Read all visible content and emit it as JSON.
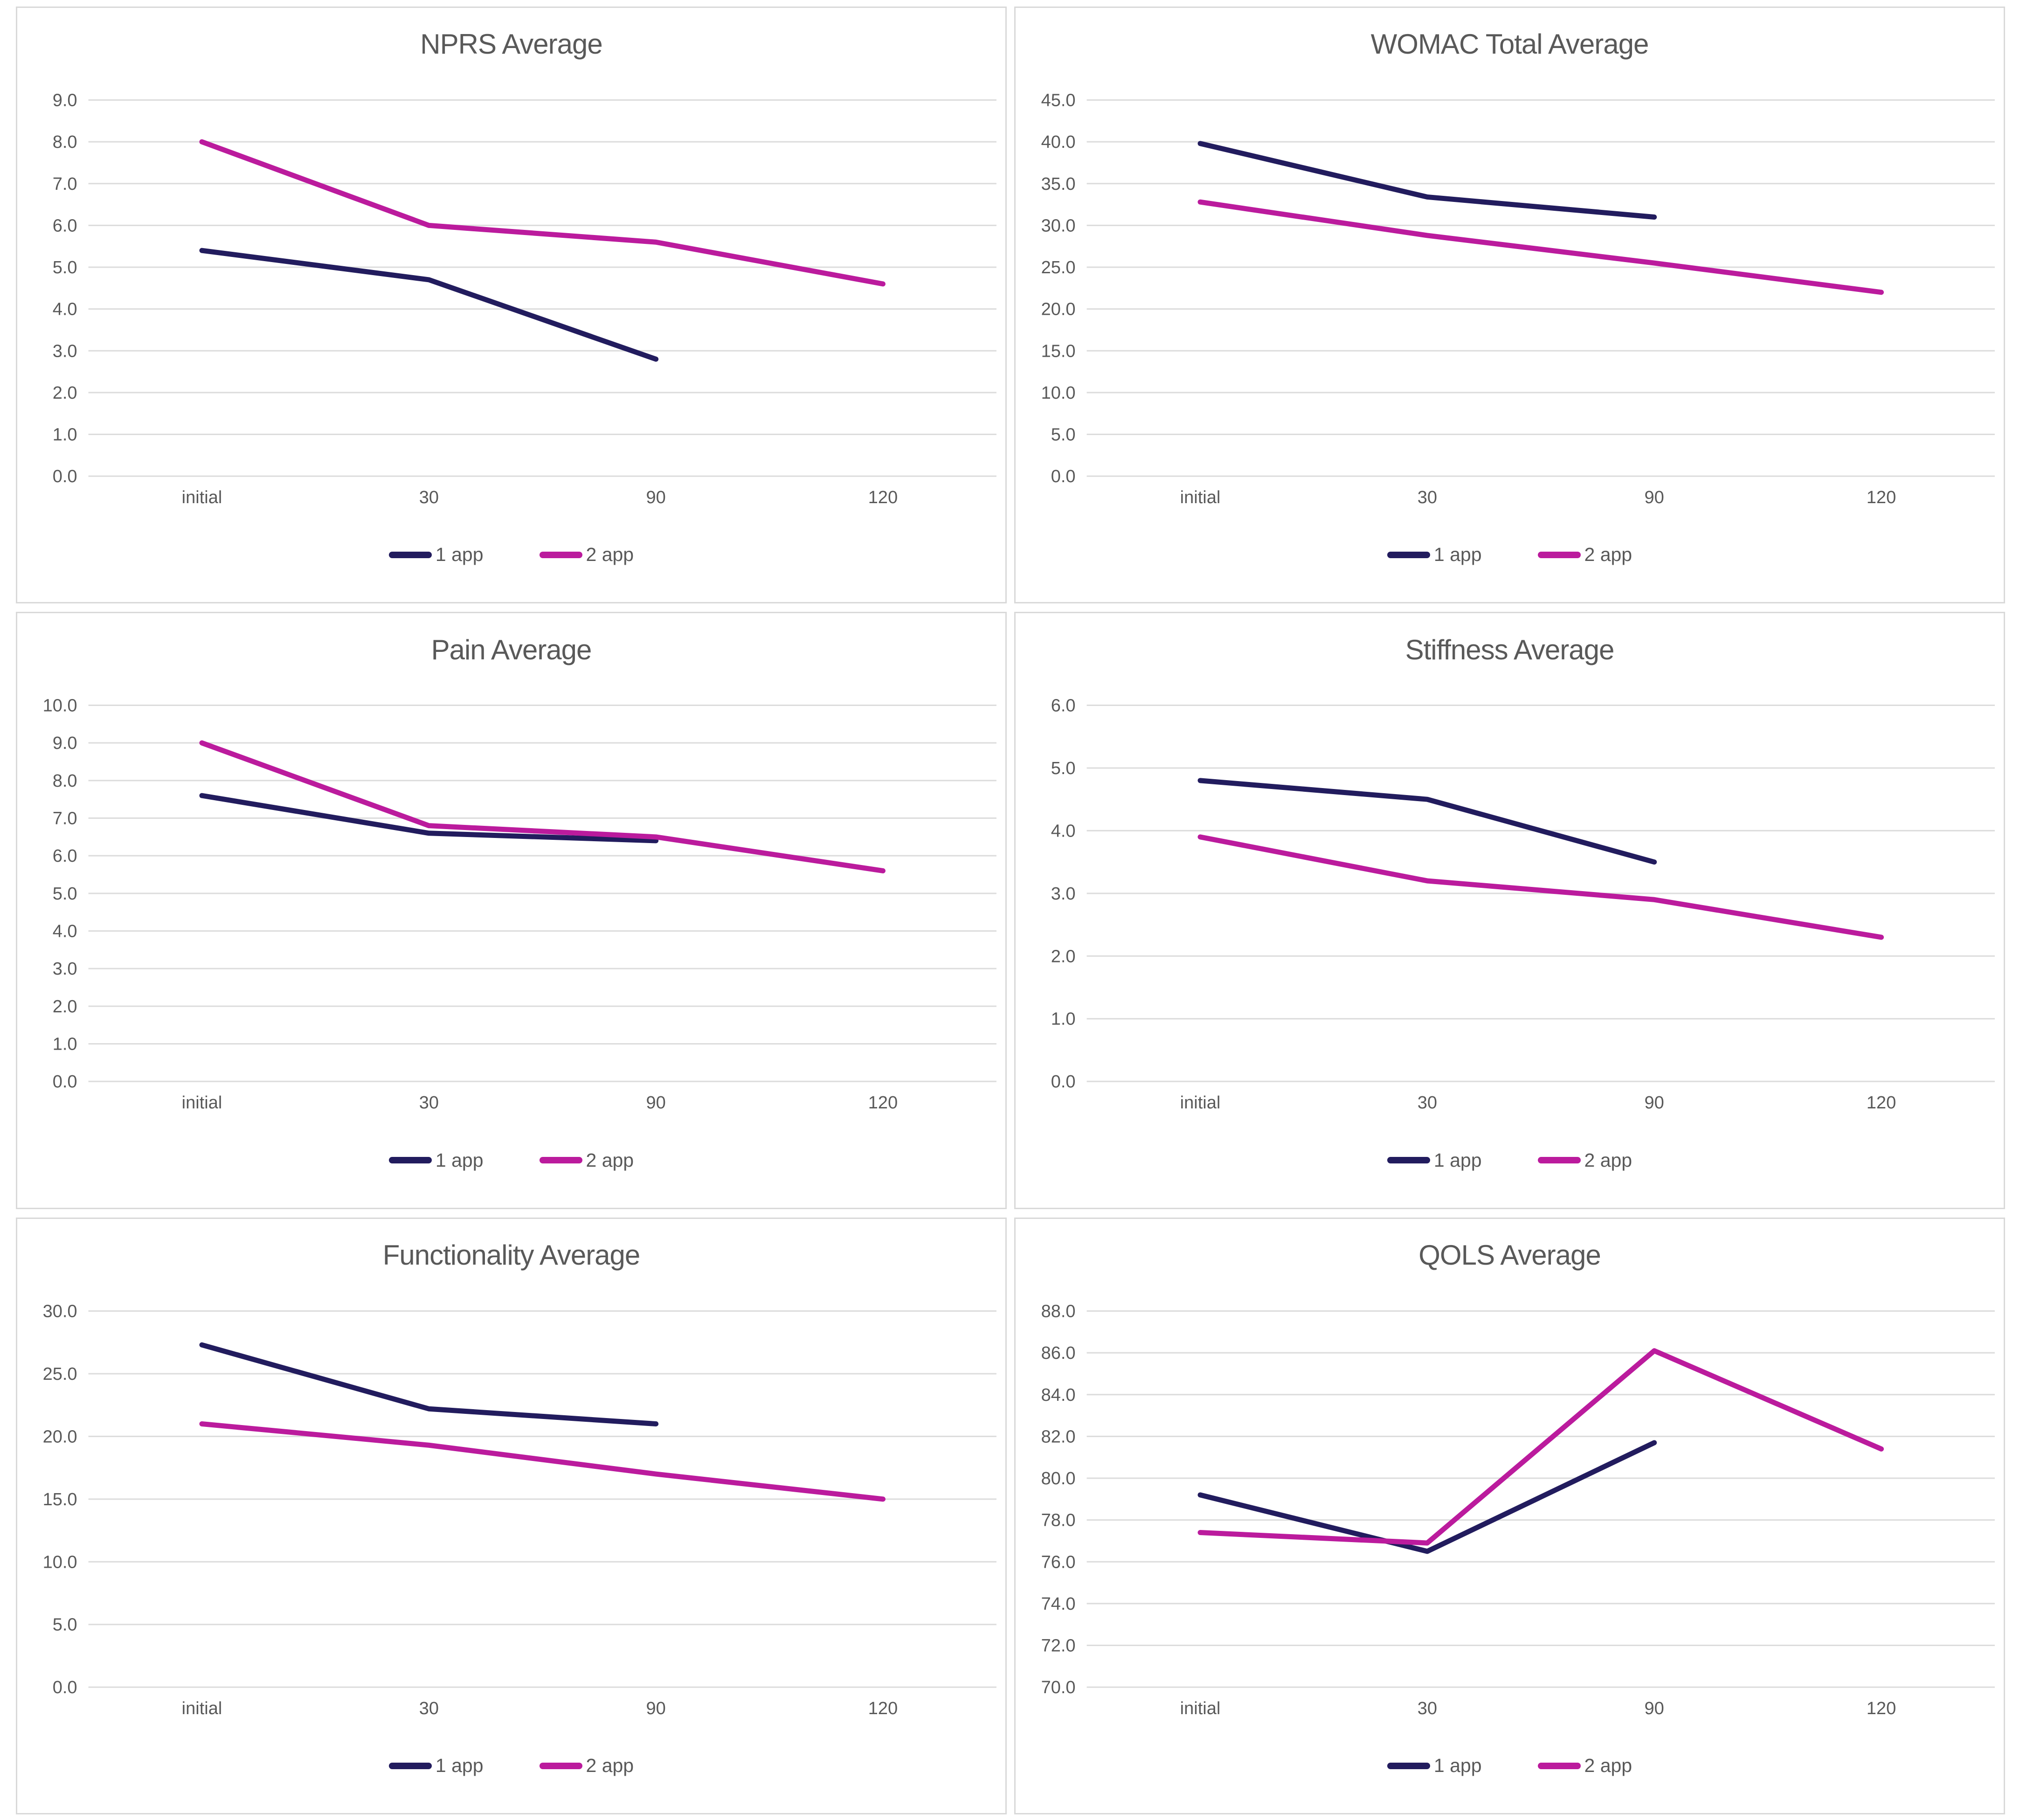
{
  "page": {
    "background": "#ffffff",
    "panel_border_color": "#d9d9d9"
  },
  "colors": {
    "series1": "#221c5e",
    "series2": "#bb1b9d",
    "grid": "#dcdcdc",
    "text": "#595959"
  },
  "chart_data": [
    {
      "type": "line",
      "title": "NPRS Average",
      "categories": [
        "initial",
        "30",
        "90",
        "120"
      ],
      "y_min": 0,
      "y_max": 9,
      "y_step": 1,
      "tick_format": "one-decimal",
      "grid": "horizontal",
      "legend_position": "bottom-center",
      "series": [
        {
          "name": "1 app",
          "color": "series1",
          "values": [
            5.4,
            4.7,
            2.8,
            null
          ]
        },
        {
          "name": "2 app",
          "color": "series2",
          "values": [
            8.0,
            6.0,
            5.6,
            4.6
          ]
        }
      ]
    },
    {
      "type": "line",
      "title": "WOMAC Total Average",
      "categories": [
        "initial",
        "30",
        "90",
        "120"
      ],
      "y_min": 0,
      "y_max": 45,
      "y_step": 5,
      "tick_format": "one-decimal",
      "grid": "horizontal",
      "legend_position": "bottom-center",
      "series": [
        {
          "name": "1 app",
          "color": "series1",
          "values": [
            39.8,
            33.4,
            31.0,
            null
          ]
        },
        {
          "name": "2 app",
          "color": "series2",
          "values": [
            32.8,
            28.8,
            25.5,
            22.0
          ]
        }
      ]
    },
    {
      "type": "line",
      "title": "Pain Average",
      "categories": [
        "initial",
        "30",
        "90",
        "120"
      ],
      "y_min": 0,
      "y_max": 10,
      "y_step": 1,
      "tick_format": "one-decimal",
      "grid": "horizontal",
      "legend_position": "bottom-center",
      "series": [
        {
          "name": "1 app",
          "color": "series1",
          "values": [
            7.6,
            6.6,
            6.4,
            null
          ]
        },
        {
          "name": "2 app",
          "color": "series2",
          "values": [
            9.0,
            6.8,
            6.5,
            5.6
          ]
        }
      ]
    },
    {
      "type": "line",
      "title": "Stiffness Average",
      "categories": [
        "initial",
        "30",
        "90",
        "120"
      ],
      "y_min": 0,
      "y_max": 6,
      "y_step": 1,
      "tick_format": "one-decimal",
      "grid": "horizontal",
      "legend_position": "bottom-center",
      "series": [
        {
          "name": "1 app",
          "color": "series1",
          "values": [
            4.8,
            4.5,
            3.5,
            null
          ]
        },
        {
          "name": "2 app",
          "color": "series2",
          "values": [
            3.9,
            3.2,
            2.9,
            2.3
          ]
        }
      ]
    },
    {
      "type": "line",
      "title": "Functionality Average",
      "categories": [
        "initial",
        "30",
        "90",
        "120"
      ],
      "y_min": 0,
      "y_max": 30,
      "y_step": 5,
      "tick_format": "one-decimal",
      "grid": "horizontal",
      "legend_position": "bottom-center",
      "series": [
        {
          "name": "1 app",
          "color": "series1",
          "values": [
            27.3,
            22.2,
            21.0,
            null
          ]
        },
        {
          "name": "2 app",
          "color": "series2",
          "values": [
            21.0,
            19.3,
            17.0,
            15.0
          ]
        }
      ]
    },
    {
      "type": "line",
      "title": "QOLS Average",
      "categories": [
        "initial",
        "30",
        "90",
        "120"
      ],
      "y_min": 70,
      "y_max": 88,
      "y_step": 2,
      "tick_format": "one-decimal",
      "grid": "horizontal",
      "legend_position": "bottom-center",
      "series": [
        {
          "name": "1 app",
          "color": "series1",
          "values": [
            79.2,
            76.5,
            81.7,
            null
          ]
        },
        {
          "name": "2 app",
          "color": "series2",
          "values": [
            77.4,
            76.9,
            86.1,
            81.4
          ]
        }
      ]
    }
  ]
}
